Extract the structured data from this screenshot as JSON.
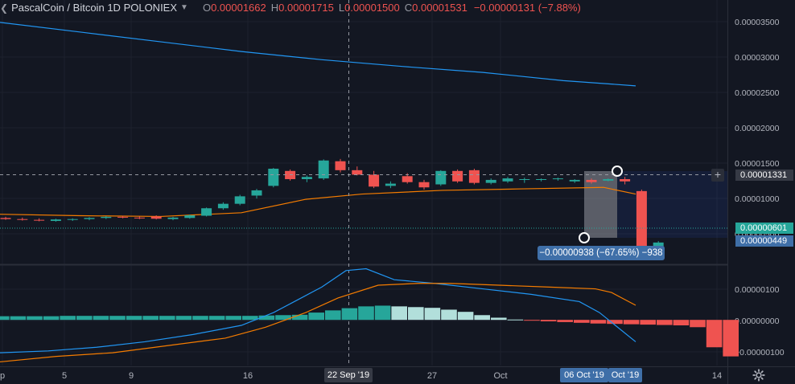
{
  "legend": {
    "symbol": "PascalCoin / Bitcoin",
    "interval": "1D",
    "exchange": "POLONIEX",
    "o_label": "O",
    "o_value": "0.00001662",
    "h_label": "H",
    "h_value": "0.00001715",
    "l_label": "L",
    "l_value": "0.00001500",
    "c_label": "C",
    "c_value": "0.00001531",
    "change": "−0.00000131 (−7.88%)"
  },
  "icons": {
    "collapse": "chevron-left-icon",
    "menu": "caret-down-icon",
    "add": "plus-icon",
    "settings": "gear-icon"
  },
  "colors": {
    "background": "#131722",
    "up": "#26a69a",
    "down": "#ef5350",
    "ma_blue": "#2196f3",
    "ma_orange": "#f57c00",
    "hist_light_up": "#b2dfdb",
    "hist_light_down": "#ffcdd2",
    "measure_box": "#3f6fa8"
  },
  "price_labels": {
    "crosshair": "0.00001331",
    "last_green": "0.00000601",
    "blue_target": "0.00000449"
  },
  "measure": {
    "text": "−0.00000938 (−67.65%) −938"
  },
  "time_labels": {
    "crosshair": "22 Sep '19",
    "range_start": "06 Oct '19",
    "range_end": "Oct '19"
  },
  "chart_data": [
    {
      "type": "candlestick",
      "y_ticks": [
        "0.00003500",
        "0.00003000",
        "0.00002500",
        "0.00002000",
        "0.00001500",
        "0.00001000",
        "0.00000500"
      ],
      "ylim": [
        3.2e-06,
        3.85e-05
      ],
      "x_ticks": [
        "p",
        "5",
        "9",
        "16",
        "27",
        "Oct",
        "14"
      ],
      "candles": [
        {
          "o": 9.3e-06,
          "h": 9.45e-06,
          "l": 9.05e-06,
          "c": 9.15e-06
        },
        {
          "o": 9.15e-06,
          "h": 9.35e-06,
          "l": 8.95e-06,
          "c": 9.05e-06
        },
        {
          "o": 9.05e-06,
          "h": 9.25e-06,
          "l": 8.85e-06,
          "c": 8.95e-06
        },
        {
          "o": 8.9e-06,
          "h": 9.2e-06,
          "l": 8.8e-06,
          "c": 9.1e-06
        },
        {
          "o": 9.05e-06,
          "h": 9.25e-06,
          "l": 8.9e-06,
          "c": 9.15e-06
        },
        {
          "o": 9.15e-06,
          "h": 9.4e-06,
          "l": 9e-06,
          "c": 9.3e-06
        },
        {
          "o": 9.3e-06,
          "h": 9.55e-06,
          "l": 9.15e-06,
          "c": 9.45e-06
        },
        {
          "o": 9.45e-06,
          "h": 9.6e-06,
          "l": 9.25e-06,
          "c": 9.35e-06
        },
        {
          "o": 9.35e-06,
          "h": 9.5e-06,
          "l": 9.15e-06,
          "c": 9.25e-06
        },
        {
          "o": 9.5e-06,
          "h": 9.65e-06,
          "l": 9.1e-06,
          "c": 9.2e-06
        },
        {
          "o": 9.15e-06,
          "h": 9.45e-06,
          "l": 9e-06,
          "c": 9.35e-06
        },
        {
          "o": 9.3e-06,
          "h": 9.75e-06,
          "l": 9.2e-06,
          "c": 9.65e-06
        },
        {
          "o": 9.6e-06,
          "h": 1.07e-05,
          "l": 9.5e-06,
          "c": 1.06e-05
        },
        {
          "o": 1.06e-05,
          "h": 1.14e-05,
          "l": 1.04e-05,
          "c": 1.12e-05
        },
        {
          "o": 1.12e-05,
          "h": 1.24e-05,
          "l": 1.1e-05,
          "c": 1.22e-05
        },
        {
          "o": 1.23e-05,
          "h": 1.32e-05,
          "l": 1.19e-05,
          "c": 1.3e-05
        },
        {
          "o": 1.36e-05,
          "h": 1.6e-05,
          "l": 1.34e-05,
          "c": 1.59e-05
        },
        {
          "o": 1.56e-05,
          "h": 1.58e-05,
          "l": 1.43e-05,
          "c": 1.45e-05
        },
        {
          "o": 1.45e-05,
          "h": 1.5e-05,
          "l": 1.41e-05,
          "c": 1.48e-05
        },
        {
          "o": 1.46e-05,
          "h": 1.715e-05,
          "l": 1.44e-05,
          "c": 1.7e-05
        },
        {
          "o": 1.69e-05,
          "h": 1.72e-05,
          "l": 1.54e-05,
          "c": 1.57e-05
        },
        {
          "o": 1.57e-05,
          "h": 1.62e-05,
          "l": 1.5e-05,
          "c": 1.51e-05
        },
        {
          "o": 1.51e-05,
          "h": 1.56e-05,
          "l": 1.33e-05,
          "c": 1.35e-05
        },
        {
          "o": 1.36e-05,
          "h": 1.42e-05,
          "l": 1.33e-05,
          "c": 1.39e-05
        },
        {
          "o": 1.49e-05,
          "h": 1.53e-05,
          "l": 1.39e-05,
          "c": 1.41e-05
        },
        {
          "o": 1.41e-05,
          "h": 1.44e-05,
          "l": 1.31e-05,
          "c": 1.34e-05
        },
        {
          "o": 1.38e-05,
          "h": 1.57e-05,
          "l": 1.36e-05,
          "c": 1.56e-05
        },
        {
          "o": 1.56e-05,
          "h": 1.58e-05,
          "l": 1.4e-05,
          "c": 1.42e-05
        },
        {
          "o": 1.57e-05,
          "h": 1.59e-05,
          "l": 1.38e-05,
          "c": 1.4e-05
        },
        {
          "o": 1.4e-05,
          "h": 1.46e-05,
          "l": 1.38e-05,
          "c": 1.44e-05
        },
        {
          "o": 1.42e-05,
          "h": 1.48e-05,
          "l": 1.4e-05,
          "c": 1.46e-05
        },
        {
          "o": 1.44e-05,
          "h": 1.47e-05,
          "l": 1.4e-05,
          "c": 1.45e-05
        },
        {
          "o": 1.44e-05,
          "h": 1.46e-05,
          "l": 1.42e-05,
          "c": 1.45e-05
        },
        {
          "o": 1.45e-05,
          "h": 1.47e-05,
          "l": 1.43e-05,
          "c": 1.46e-05
        },
        {
          "o": 1.42e-05,
          "h": 1.45e-05,
          "l": 1.4e-05,
          "c": 1.44e-05
        },
        {
          "o": 1.44e-05,
          "h": 1.46e-05,
          "l": 1.39e-05,
          "c": 1.41e-05
        },
        {
          "o": 1.43e-05,
          "h": 1.46e-05,
          "l": 1.42e-05,
          "c": 1.45e-05
        },
        {
          "o": 1.45e-05,
          "h": 1.48e-05,
          "l": 1.38e-05,
          "c": 1.42e-05
        },
        {
          "o": 1.29e-05,
          "h": 1.31e-05,
          "l": 5.2e-06,
          "c": 5.3e-06
        },
        {
          "o": 5.1e-06,
          "h": 6.2e-06,
          "l": 5e-06,
          "c": 6.01e-06
        }
      ],
      "ma_blue": [
        3.55e-05,
        3.42e-05,
        3.29e-05,
        3.16e-05,
        3.05e-05,
        2.96e-05,
        2.88e-05,
        2.77e-05,
        2.7e-05
      ],
      "ma_orange": [
        9.8e-06,
        9.6e-06,
        9.5e-06,
        1e-05,
        1.18e-05,
        1.25e-05,
        1.3e-05,
        1.32e-05,
        1.34e-05,
        1.25e-05
      ]
    },
    {
      "type": "histogram",
      "y_ticks": [
        "0.00000100",
        "0.00000000",
        "−0.00000100"
      ],
      "ylim": [
        -1.25e-06,
        1.5e-06
      ],
      "histogram": [
        1e-07,
        1e-07,
        1e-07,
        1e-07,
        1.1e-07,
        1.1e-07,
        1.1e-07,
        1.1e-07,
        1.1e-07,
        1.1e-07,
        1.1e-07,
        1.1e-07,
        1.1e-07,
        1.1e-07,
        1.1e-07,
        1.1e-07,
        1.2e-07,
        1.3e-07,
        1.4e-07,
        2e-07,
        2.6e-07,
        3.2e-07,
        3.7e-07,
        3.9e-07,
        3.7e-07,
        3.5e-07,
        3.3e-07,
        2.8e-07,
        2.2e-07,
        1.3e-07,
        6e-08,
        1e-08,
        -2e-08,
        -4e-08,
        -6e-08,
        -8e-08,
        -1e-07,
        -1.1e-07,
        -1.2e-07,
        -1.3e-07,
        -1.4e-07,
        -1.5e-07,
        -2e-07,
        -7.5e-07,
        -1e-06
      ],
      "macd": [
        -9e-07,
        -8.5e-07,
        -7.5e-07,
        -6e-07,
        -4e-07,
        -1.5e-07,
        2e-07,
        5.5e-07,
        9e-07,
        1.35e-06,
        1.4e-06,
        1.1e-06,
        1e-06,
        8.5e-07,
        7e-07,
        5e-07,
        2e-07,
        -6e-07
      ],
      "signal": [
        -1.15e-06,
        -1e-06,
        -9e-07,
        -7e-07,
        -5e-07,
        -2e-07,
        2e-07,
        6e-07,
        9.5e-07,
        1e-06,
        1e-06,
        9.5e-07,
        9e-07,
        8.5e-07,
        7.5e-07,
        4e-07
      ]
    }
  ]
}
